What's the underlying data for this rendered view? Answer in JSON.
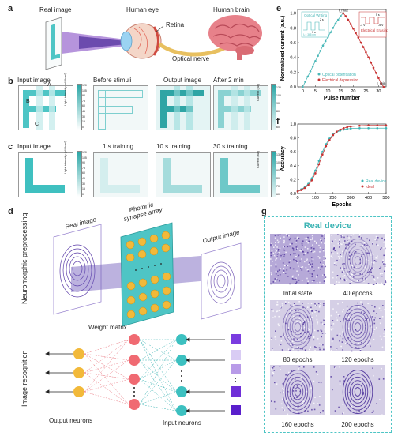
{
  "panel_a": {
    "label": "a",
    "real_image": "Real image",
    "human_eye": "Human eye",
    "human_brain": "Human brain",
    "retina": "Retina",
    "optical_nerve": "Optical nerve"
  },
  "panel_b": {
    "label": "b",
    "titles": [
      "Input image",
      "Before stimuli",
      "Output image",
      "After 2 min"
    ],
    "region_labels": [
      "A",
      "B",
      "C"
    ],
    "colorbar1_label": "Light intensity (uW/cm²)",
    "colorbar1_ticks": [
      "120",
      "105",
      "90",
      "75",
      "60",
      "45",
      "30",
      "15",
      "0"
    ],
    "colorbar2_label": "Current (nA)",
    "colorbar2_ticks": [
      "130",
      "100",
      "90",
      "80",
      "70",
      "60"
    ]
  },
  "panel_c": {
    "label": "c",
    "titles": [
      "Input image",
      "1 s training",
      "10 s training",
      "30 s training"
    ],
    "colorbar1_label": "Light intensity (uW/cm²)",
    "colorbar1_ticks": [
      "120",
      "105",
      "90",
      "75",
      "60",
      "45",
      "30",
      "15",
      "0"
    ],
    "colorbar2_label": "Current (nA)",
    "colorbar2_ticks": [
      "130",
      "100",
      "90",
      "80",
      "70",
      "60"
    ]
  },
  "panel_d": {
    "label": "d",
    "preprocessing_label": "Neuromorphic preprocessing",
    "real_image": "Real image",
    "array_label": "Photonic synapse array",
    "output_image": "Output image",
    "recognition_label": "Image recognition",
    "weight_matrix": "Weight matrix",
    "output_neurons": "Output neurons",
    "input_neurons": "Input neurons"
  },
  "panel_e": {
    "label": "e",
    "ylabel": "Normalized current (a.u.)",
    "xlabel": "Pulse number",
    "legend": [
      "Optical potentiation",
      "Electrical depression"
    ],
    "inset_left_title": "Optical Writing",
    "inset_left_labels": [
      "2 s",
      "1 s",
      "λ = 365 nm",
      "P = 180 μW/cm²"
    ],
    "inset_right_title": "Electrical Erasing",
    "inset_right_labels": [
      "5 s",
      "-3 V",
      "1 s",
      "-5 V",
      "λ = 8.4 V"
    ],
    "i_max_label": "I_max",
    "i_min_label": "I_min",
    "colors": {
      "potentiation": "#4ab8b8",
      "depression": "#c83232"
    }
  },
  "panel_f": {
    "label": "f",
    "ylabel": "Accuracy",
    "xlabel": "Epochs",
    "legend": [
      "Real device",
      "Ideal"
    ],
    "colors": {
      "real": "#3cb4b4",
      "ideal": "#c83232"
    }
  },
  "panel_g": {
    "label": "g",
    "title": "Real device",
    "captions": [
      "Intial state",
      "40 epochs",
      "80 epochs",
      "120 epochs",
      "160 epochs",
      "200 epochs"
    ]
  },
  "chart_data": [
    {
      "type": "line",
      "panel": "e",
      "xlabel": "Pulse number",
      "ylabel": "Normalized current (a.u.)",
      "xlim": [
        -2,
        33
      ],
      "ylim": [
        0.0,
        1.05
      ],
      "xticks": [
        0,
        5,
        10,
        15,
        20,
        25,
        30
      ],
      "yticks": [
        0.0,
        0.2,
        0.4,
        0.6,
        0.8,
        1.0
      ],
      "series": [
        {
          "name": "Optical potentiation",
          "x": [
            0,
            1,
            2,
            3,
            4,
            5,
            6,
            7,
            8,
            9,
            10,
            11,
            12,
            13,
            14,
            15,
            16
          ],
          "y": [
            0.0,
            0.07,
            0.14,
            0.21,
            0.28,
            0.35,
            0.42,
            0.49,
            0.56,
            0.62,
            0.68,
            0.74,
            0.8,
            0.86,
            0.91,
            0.96,
            1.0
          ]
        },
        {
          "name": "Electrical depression",
          "x": [
            16,
            17,
            18,
            19,
            20,
            21,
            22,
            23,
            24,
            25,
            26,
            27,
            28,
            29,
            30,
            31,
            32
          ],
          "y": [
            1.0,
            0.96,
            0.91,
            0.85,
            0.79,
            0.73,
            0.67,
            0.6,
            0.54,
            0.47,
            0.4,
            0.33,
            0.26,
            0.19,
            0.12,
            0.05,
            0.0
          ]
        }
      ]
    },
    {
      "type": "line",
      "panel": "f",
      "xlabel": "Epochs",
      "ylabel": "Accuracy",
      "xlim": [
        0,
        500
      ],
      "ylim": [
        0.0,
        1.0
      ],
      "xticks": [
        0,
        100,
        200,
        300,
        400,
        500
      ],
      "yticks": [
        0.0,
        0.2,
        0.4,
        0.6,
        0.8,
        1.0
      ],
      "series": [
        {
          "name": "Real device",
          "x": [
            0,
            20,
            40,
            60,
            80,
            100,
            120,
            140,
            160,
            180,
            200,
            220,
            240,
            260,
            280,
            300,
            350,
            400,
            450,
            500
          ],
          "y": [
            0.04,
            0.06,
            0.09,
            0.14,
            0.22,
            0.33,
            0.47,
            0.6,
            0.71,
            0.79,
            0.85,
            0.88,
            0.905,
            0.92,
            0.93,
            0.935,
            0.94,
            0.94,
            0.94,
            0.94
          ]
        },
        {
          "name": "Ideal",
          "x": [
            0,
            20,
            40,
            60,
            80,
            100,
            120,
            140,
            160,
            180,
            200,
            220,
            240,
            260,
            280,
            300,
            350,
            400,
            450,
            500
          ],
          "y": [
            0.03,
            0.05,
            0.08,
            0.12,
            0.19,
            0.29,
            0.42,
            0.56,
            0.68,
            0.77,
            0.84,
            0.89,
            0.92,
            0.94,
            0.955,
            0.965,
            0.975,
            0.98,
            0.98,
            0.98
          ]
        }
      ]
    }
  ]
}
